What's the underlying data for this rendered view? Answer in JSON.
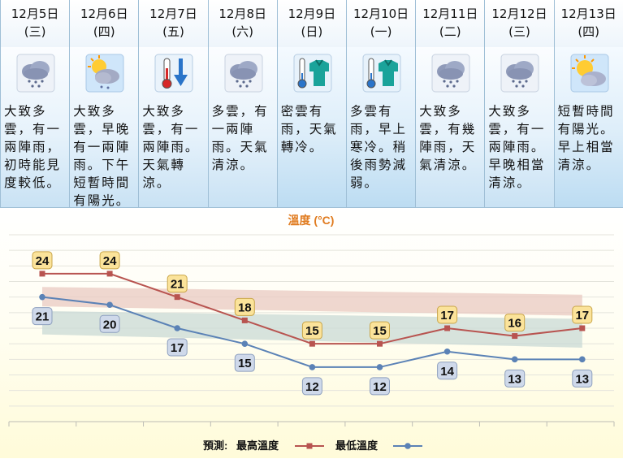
{
  "days": [
    {
      "date": "12月5日",
      "weekday": "(三)",
      "icon": "cloudy-rain-icon",
      "desc": "大致多雲，有一兩陣雨，初時能見度較低。"
    },
    {
      "date": "12月6日",
      "weekday": "(四)",
      "icon": "sun-cloud-rain-icon",
      "desc": "大致多雲，早晚有一兩陣雨。下午短暫時間有陽光。"
    },
    {
      "date": "12月7日",
      "weekday": "(五)",
      "icon": "cool-thermometer-icon",
      "desc": "大致多雲，有一兩陣雨。天氣轉涼。"
    },
    {
      "date": "12月8日",
      "weekday": "(六)",
      "icon": "cloudy-rain-icon",
      "desc": "多雲，有一兩陣雨。天氣清涼。"
    },
    {
      "date": "12月9日",
      "weekday": "(日)",
      "icon": "cold-sweater-icon",
      "desc": "密雲有雨，天氣轉冷。"
    },
    {
      "date": "12月10日",
      "weekday": "(一)",
      "icon": "cold-sweater-icon",
      "desc": "多雲有雨，早上寒冷。稍後雨勢減弱。"
    },
    {
      "date": "12月11日",
      "weekday": "(二)",
      "icon": "cloudy-rain-icon",
      "desc": "大致多雲，有幾陣雨，天氣清涼。"
    },
    {
      "date": "12月12日",
      "weekday": "(三)",
      "icon": "cloudy-rain-icon",
      "desc": "大致多雲，有一兩陣雨。早晚相當清涼。"
    },
    {
      "date": "12月13日",
      "weekday": "(四)",
      "icon": "sun-cloud-icon",
      "desc": "短暫時間有陽光。早上相當清涼。"
    }
  ],
  "colors": {
    "max": "#b85450",
    "min": "#5b82b6",
    "max_band": "#e9c9c2",
    "min_band": "#c9d9d6",
    "title": "#e07b1f"
  },
  "chart_data": {
    "type": "line",
    "title": "溫度 (°C)",
    "categories": [
      "12月5日",
      "12月6日",
      "12月7日",
      "12月8日",
      "12月9日",
      "12月10日",
      "12月11日",
      "12月12日",
      "12月13日"
    ],
    "series": [
      {
        "name": "最高溫度",
        "values": [
          24,
          24,
          21,
          18,
          15,
          15,
          17,
          16,
          17
        ]
      },
      {
        "name": "最低溫度",
        "values": [
          21,
          20,
          17,
          15,
          12,
          12,
          14,
          13,
          13
        ]
      }
    ],
    "ylim": [
      5,
      29
    ],
    "grid": true,
    "legend_prefix": "預測:",
    "legend_position": "bottom-center"
  }
}
